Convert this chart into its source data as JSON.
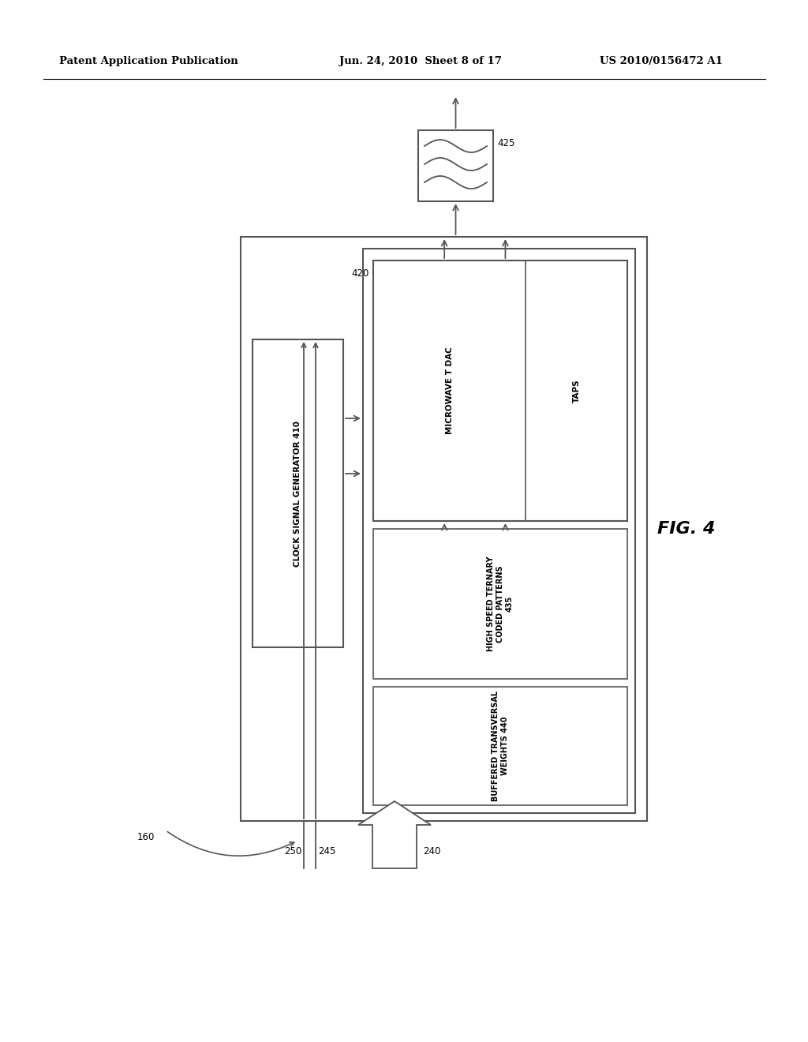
{
  "bg_color": "#ffffff",
  "header_left": "Patent Application Publication",
  "header_mid": "Jun. 24, 2010  Sheet 8 of 17",
  "header_right": "US 2010/0156472 A1",
  "fig_label": "FIG. 4",
  "text_clock": "CLOCK SIGNAL GENERATOR 410",
  "text_mwave": "MICROWAVE T DAC",
  "text_taps": "TAPS",
  "text_hs": "HIGH SPEED TERNARY\nCODED PATTERNS\n435",
  "text_buf": "BUFFERED TRANSVERSAL\nWEIGHTS 440",
  "label_160": "160",
  "label_240": "240",
  "label_245": "245",
  "label_250": "250",
  "label_420": "420",
  "label_425": "425"
}
